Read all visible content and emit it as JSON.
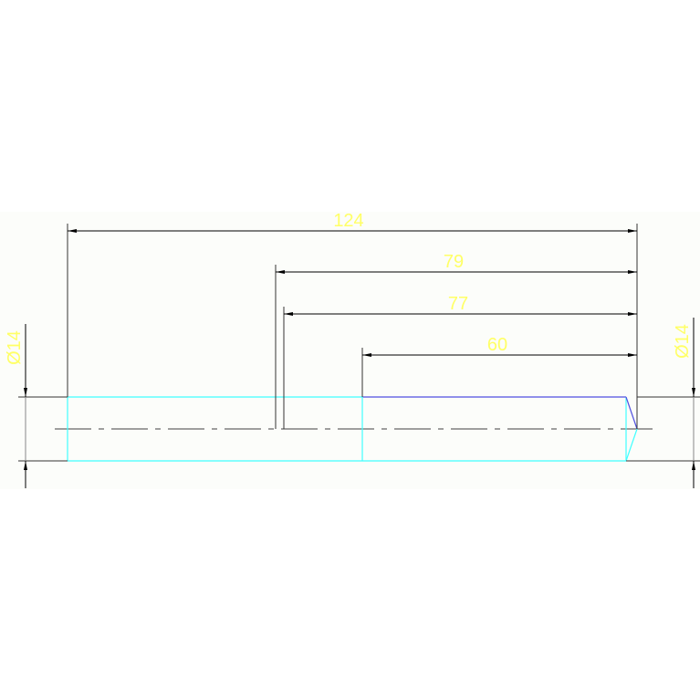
{
  "dimensions": {
    "overall_length": "124",
    "length_79": "79",
    "length_77": "77",
    "length_60": "60",
    "diameter_left": "Ø14",
    "diameter_right": "Ø14"
  },
  "colors": {
    "dimension_lines": "#000000",
    "dimension_text": "#ffff66",
    "outline_cyan": "#40ffff",
    "outline_blue": "#5050e0",
    "centerline": "#404040"
  }
}
